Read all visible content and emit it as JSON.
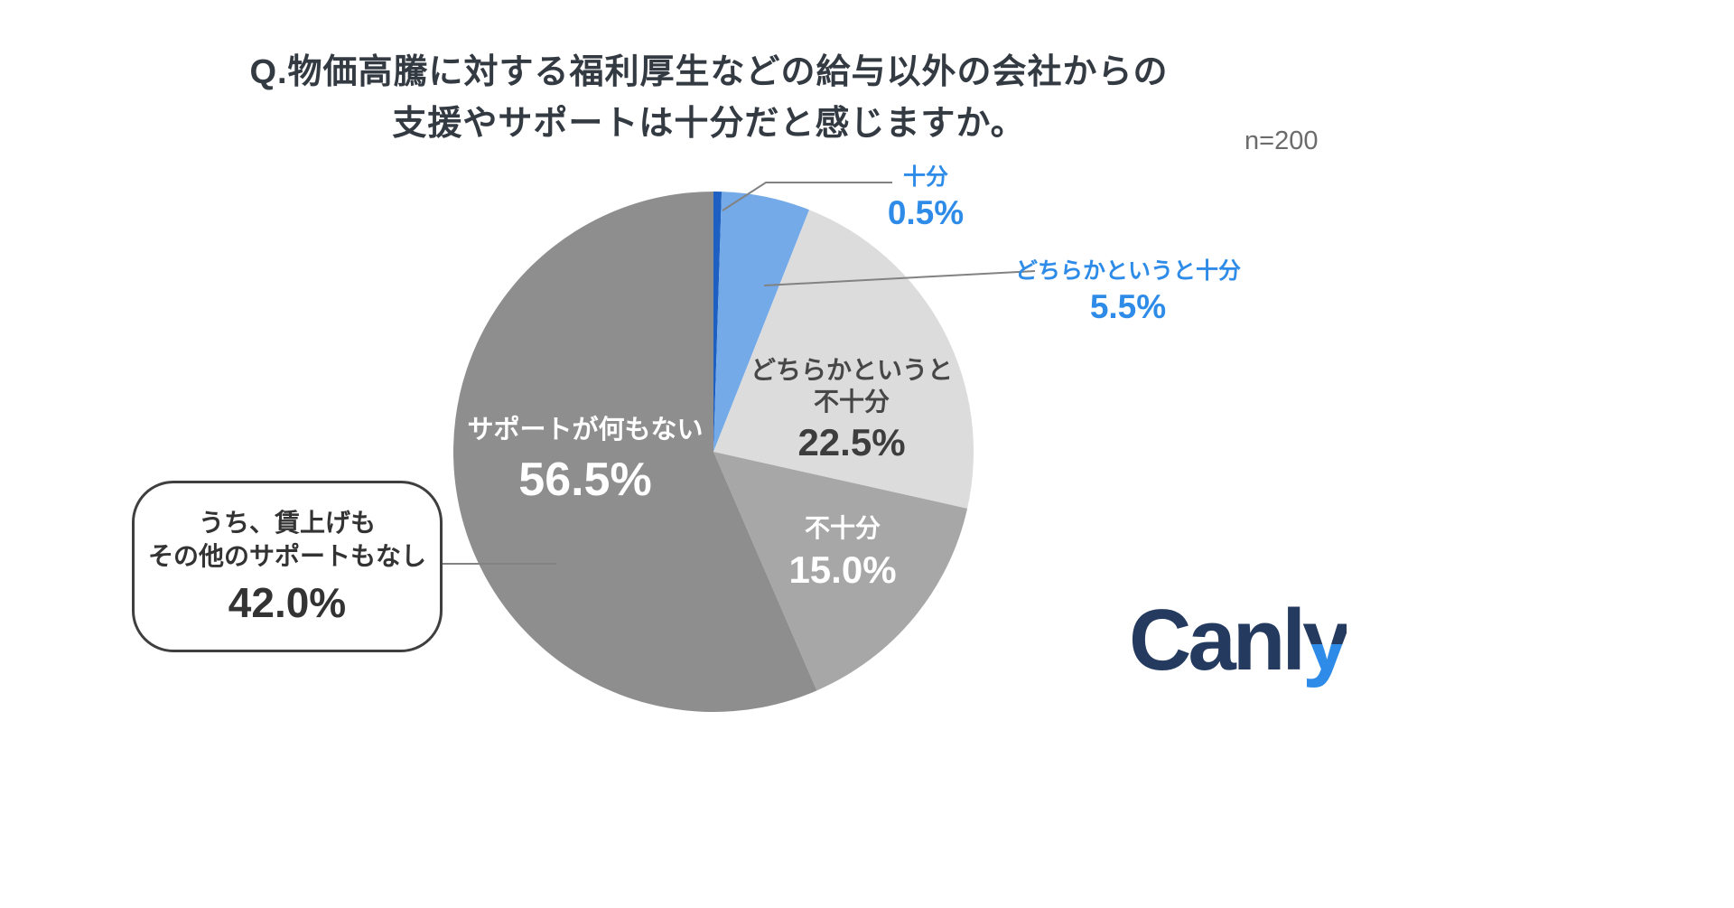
{
  "title": {
    "line1": "Q.物価高騰に対する福利厚生などの給与以外の会社からの",
    "line2": "支援やサポートは十分だと感じますか。"
  },
  "sample_size": "n=200",
  "chart_data": {
    "type": "pie",
    "title": "Q.物価高騰に対する福利厚生などの給与以外の会社からの支援やサポートは十分だと感じますか。",
    "sample_size": "n=200",
    "unit": "%",
    "start_angle_deg": -90,
    "direction": "clockwise",
    "legend_position": "none",
    "slices": [
      {
        "label": "十分",
        "value": 0.5,
        "display": "0.5%",
        "color": "#1e5fc2",
        "text_color": "#2e8ce8",
        "label_placement": "outside"
      },
      {
        "label": "どちらかというと十分",
        "value": 5.5,
        "display": "5.5%",
        "color": "#74aae8",
        "text_color": "#2e8ce8",
        "label_placement": "outside"
      },
      {
        "label": "どちらかというと不十分",
        "value": 22.5,
        "display": "22.5%",
        "color": "#dcdcdc",
        "text_color": "#474747",
        "label_placement": "inside",
        "label_line1": "どちらかというと",
        "label_line2": "不十分"
      },
      {
        "label": "不十分",
        "value": 15.0,
        "display": "15.0%",
        "color": "#a7a7a7",
        "text_color": "#ffffff",
        "label_placement": "inside"
      },
      {
        "label": "サポートが何もない",
        "value": 56.5,
        "display": "56.5%",
        "color": "#8e8e8e",
        "text_color": "#ffffff",
        "label_placement": "inside"
      }
    ],
    "annotation": {
      "line1": "うち、賃上げも",
      "line2": "その他のサポートもなし",
      "value": 42.0,
      "display": "42.0%",
      "refers_to": "サポートが何もない"
    }
  },
  "logo": {
    "main": "Canl",
    "accent": "y"
  }
}
